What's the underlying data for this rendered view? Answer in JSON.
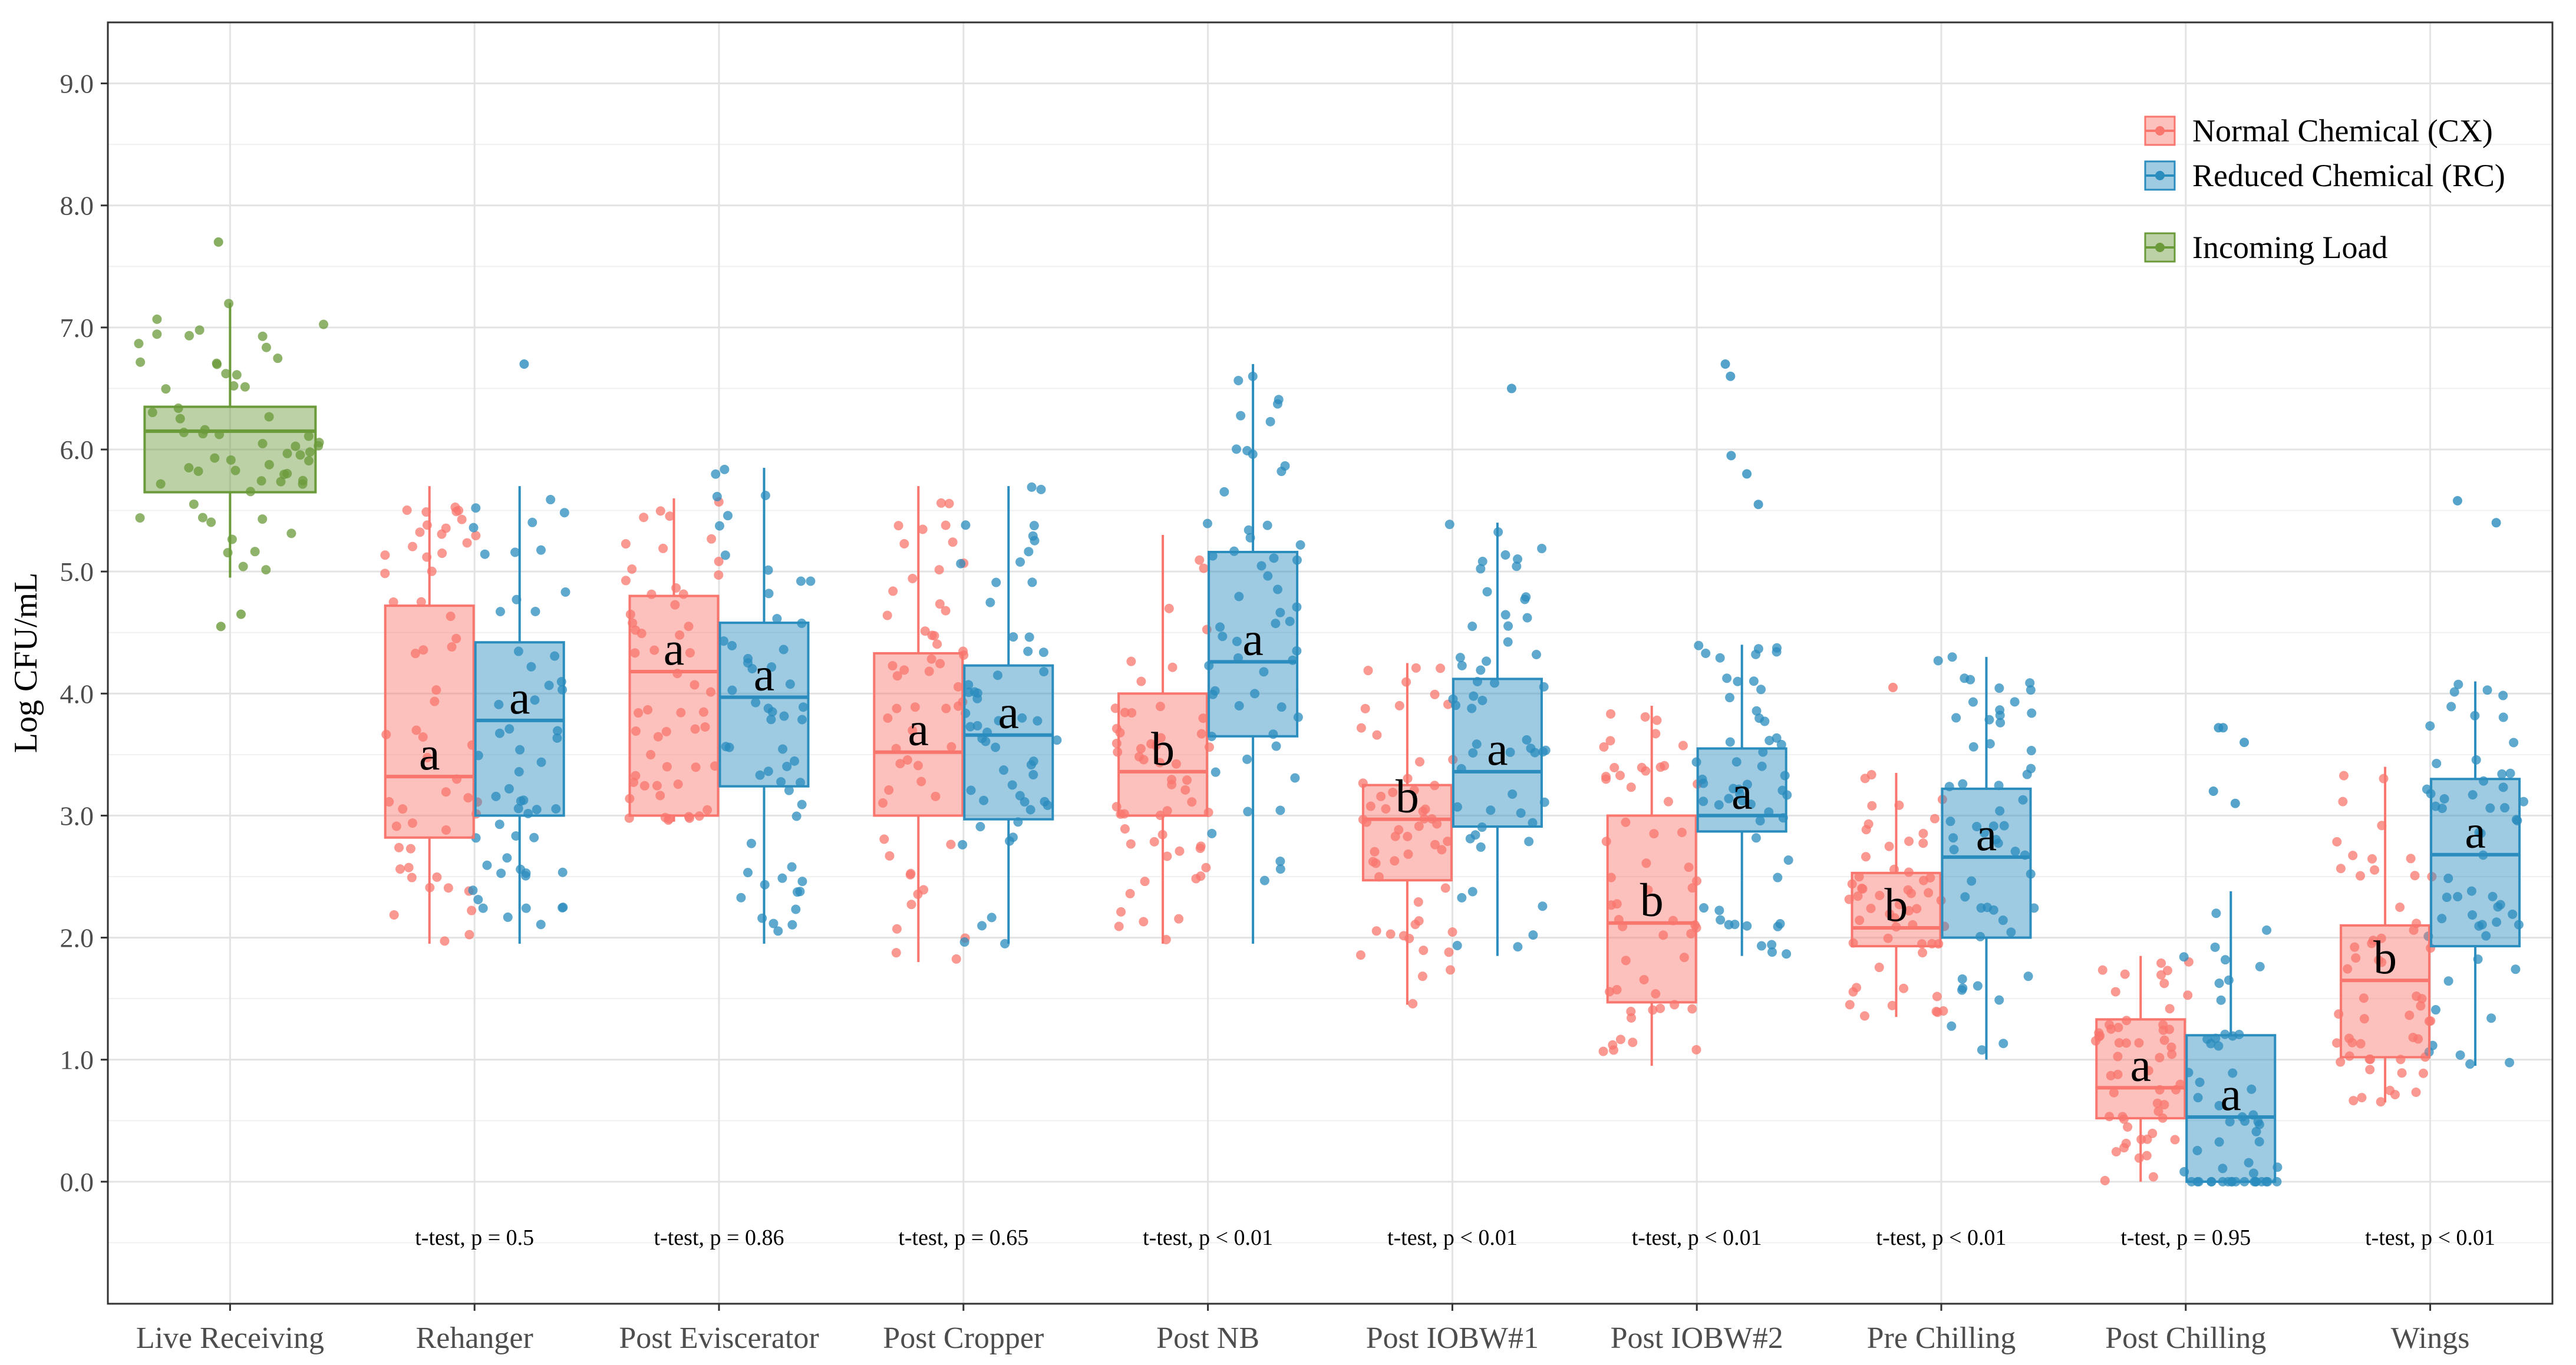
{
  "chart_data": {
    "type": "box",
    "ylabel": "Log CFU/mL",
    "xlabel": "",
    "ylim": [
      -1.0,
      9.5
    ],
    "yticks": [
      "0.0",
      "1.0",
      "2.0",
      "3.0",
      "4.0",
      "5.0",
      "6.0",
      "7.0",
      "8.0",
      "9.0"
    ],
    "grid": true,
    "legend_position": "top-right",
    "categories": [
      "Live Receiving",
      "Rehanger",
      "Post Eviscerator",
      "Post Cropper",
      "Post NB",
      "Post IOBW#1",
      "Post IOBW#2",
      "Pre Chilling",
      "Post Chilling",
      "Wings"
    ],
    "colors": {
      "Normal Chemical (CX)": "#f8766d",
      "Reduced Chemical (RC)": "#2b8cbe",
      "Incoming Load": "#6a9a3a"
    },
    "series": [
      {
        "name": "Incoming Load",
        "boxes": [
          {
            "category": "Live Receiving",
            "min": 4.95,
            "q1": 5.65,
            "median": 6.15,
            "q3": 6.35,
            "max": 7.2,
            "letter": ""
          }
        ],
        "outliers": [
          {
            "category": "Live Receiving",
            "values": [
              7.7,
              4.65,
              4.55
            ]
          }
        ]
      },
      {
        "name": "Normal Chemical (CX)",
        "boxes": [
          {
            "category": "Rehanger",
            "min": 1.95,
            "q1": 2.82,
            "median": 3.32,
            "q3": 4.72,
            "max": 5.7,
            "letter": "a"
          },
          {
            "category": "Post Eviscerator",
            "min": 2.95,
            "q1": 3.0,
            "median": 4.18,
            "q3": 4.8,
            "max": 5.6,
            "letter": "a"
          },
          {
            "category": "Post Cropper",
            "min": 1.8,
            "q1": 3.0,
            "median": 3.52,
            "q3": 4.33,
            "max": 5.7,
            "letter": "a"
          },
          {
            "category": "Post NB",
            "min": 1.95,
            "q1": 3.0,
            "median": 3.36,
            "q3": 4.0,
            "max": 5.3,
            "letter": "b"
          },
          {
            "category": "Post IOBW#1",
            "min": 1.45,
            "q1": 2.47,
            "median": 2.97,
            "q3": 3.25,
            "max": 4.25,
            "letter": "b"
          },
          {
            "category": "Post IOBW#2",
            "min": 0.95,
            "q1": 1.47,
            "median": 2.12,
            "q3": 3.0,
            "max": 3.9,
            "letter": "b"
          },
          {
            "category": "Pre Chilling",
            "min": 1.35,
            "q1": 1.93,
            "median": 2.08,
            "q3": 2.53,
            "max": 3.35,
            "letter": "b"
          },
          {
            "category": "Post Chilling",
            "min": 0.0,
            "q1": 0.52,
            "median": 0.77,
            "q3": 1.33,
            "max": 1.85,
            "letter": "a"
          },
          {
            "category": "Wings",
            "min": 0.65,
            "q1": 1.02,
            "median": 1.65,
            "q3": 2.1,
            "max": 3.4,
            "letter": "b"
          }
        ],
        "outliers": [
          {
            "category": "Pre Chilling",
            "values": [
              4.05
            ]
          }
        ]
      },
      {
        "name": "Reduced Chemical (RC)",
        "boxes": [
          {
            "category": "Rehanger",
            "min": 1.95,
            "q1": 3.0,
            "median": 3.78,
            "q3": 4.42,
            "max": 5.7,
            "letter": "a"
          },
          {
            "category": "Post Eviscerator",
            "min": 1.95,
            "q1": 3.24,
            "median": 3.97,
            "q3": 4.58,
            "max": 5.85,
            "letter": "a"
          },
          {
            "category": "Post Cropper",
            "min": 1.95,
            "q1": 2.97,
            "median": 3.66,
            "q3": 4.23,
            "max": 5.7,
            "letter": "a"
          },
          {
            "category": "Post NB",
            "min": 1.95,
            "q1": 3.65,
            "median": 4.26,
            "q3": 5.16,
            "max": 6.7,
            "letter": "a"
          },
          {
            "category": "Post IOBW#1",
            "min": 1.85,
            "q1": 2.91,
            "median": 3.36,
            "q3": 4.12,
            "max": 5.4,
            "letter": "a"
          },
          {
            "category": "Post IOBW#2",
            "min": 1.85,
            "q1": 2.87,
            "median": 3.0,
            "q3": 3.55,
            "max": 4.4,
            "letter": "a"
          },
          {
            "category": "Pre Chilling",
            "min": 1.0,
            "q1": 2.0,
            "median": 2.66,
            "q3": 3.22,
            "max": 4.3,
            "letter": "a"
          },
          {
            "category": "Post Chilling",
            "min": 0.0,
            "q1": 0.0,
            "median": 0.53,
            "q3": 1.2,
            "max": 2.38,
            "letter": "a"
          },
          {
            "category": "Wings",
            "min": 0.95,
            "q1": 1.93,
            "median": 2.68,
            "q3": 3.3,
            "max": 4.1,
            "letter": "a"
          }
        ],
        "outliers": [
          {
            "category": "Rehanger",
            "values": [
              6.7
            ]
          },
          {
            "category": "Post IOBW#1",
            "values": [
              6.5
            ]
          },
          {
            "category": "Post IOBW#2",
            "values": [
              6.7,
              6.6,
              5.95,
              5.8,
              5.55
            ]
          },
          {
            "category": "Post Chilling",
            "values": [
              3.72,
              3.72,
              3.6,
              3.2,
              3.1
            ]
          },
          {
            "category": "Wings",
            "values": [
              5.58,
              5.4
            ]
          }
        ]
      }
    ],
    "annotations": [
      {
        "category": "Rehanger",
        "text": "t-test, p = 0.5"
      },
      {
        "category": "Post Eviscerator",
        "text": "t-test, p = 0.86"
      },
      {
        "category": "Post Cropper",
        "text": "t-test, p = 0.65"
      },
      {
        "category": "Post NB",
        "text": "t-test, p < 0.01"
      },
      {
        "category": "Post IOBW#1",
        "text": "t-test, p < 0.01"
      },
      {
        "category": "Post IOBW#2",
        "text": "t-test, p < 0.01"
      },
      {
        "category": "Pre Chilling",
        "text": "t-test, p < 0.01"
      },
      {
        "category": "Post Chilling",
        "text": "t-test, p = 0.95"
      },
      {
        "category": "Wings",
        "text": "t-test, p < 0.01"
      }
    ],
    "legend": [
      "Normal Chemical (CX)",
      "Reduced Chemical (RC)",
      "Incoming Load"
    ]
  }
}
